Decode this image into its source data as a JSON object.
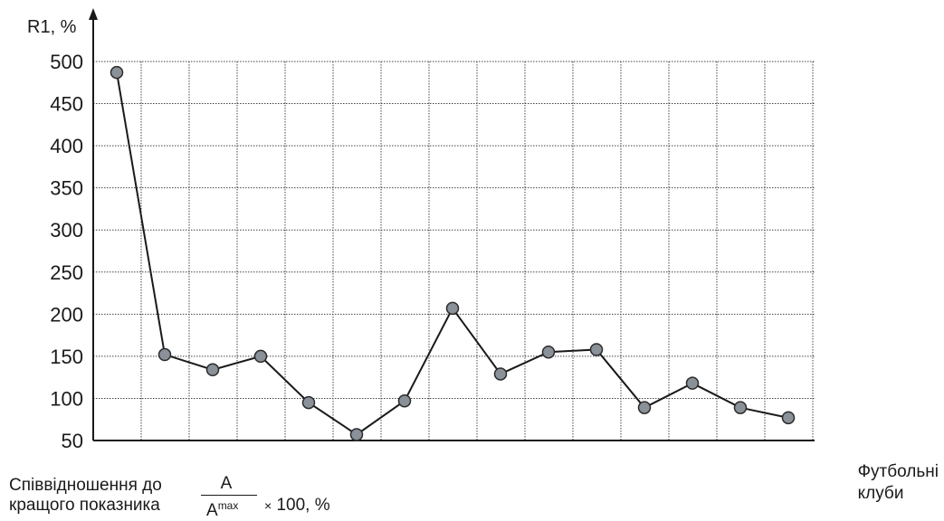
{
  "chart_data": {
    "type": "line",
    "ylabel": "R1, %",
    "xlabel_line1": "Футбольні",
    "xlabel_line2": "клуби",
    "ylim": [
      50,
      500
    ],
    "yticks": [
      50,
      100,
      150,
      200,
      250,
      300,
      350,
      400,
      450,
      500
    ],
    "ytick_labels": [
      "50",
      "100",
      "150",
      "200",
      "250",
      "300",
      "350",
      "400",
      "450",
      "500"
    ],
    "grid": true,
    "series": [
      {
        "values": [
          487,
          152,
          134,
          150,
          95,
          57,
          97,
          207,
          129,
          155,
          158,
          89,
          118,
          89,
          77
        ]
      }
    ],
    "colors": {
      "line": "#1a1a1a",
      "marker_fill": "#8a9198",
      "marker_stroke": "#2b2b2b",
      "grid": "#444444"
    }
  },
  "footnote": {
    "line1": "Співвідношення до",
    "line2": "кращого показника",
    "numerator": "A",
    "denominator": "A",
    "denominator_sup": "max",
    "times": "×",
    "suffix": "100, %"
  }
}
